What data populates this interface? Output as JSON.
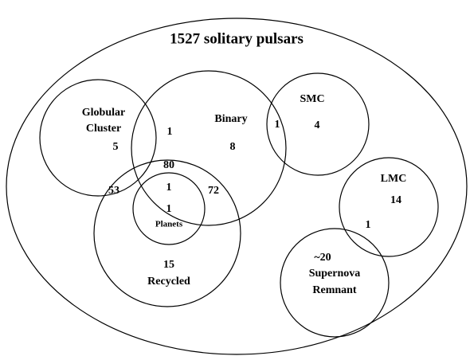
{
  "title": "1527 solitary pulsars",
  "sets": [
    {
      "label": [
        "Globular",
        "Cluster"
      ],
      "count": 5
    },
    {
      "label": [
        "Binary"
      ],
      "count": 8
    },
    {
      "label": [
        "SMC"
      ],
      "count": 4
    },
    {
      "label": [
        "Planets"
      ],
      "count": 1
    },
    {
      "label": [
        "Recycled"
      ],
      "count": 15
    },
    {
      "label": [
        "LMC"
      ],
      "count": 14
    },
    {
      "label": [
        "Supernova",
        "Remnant"
      ],
      "count": "~20"
    }
  ],
  "overlaps": [
    {
      "sets": [
        "Globular Cluster",
        "Binary"
      ],
      "count": 1
    },
    {
      "sets": [
        "Binary",
        "SMC"
      ],
      "count": 1
    },
    {
      "sets": [
        "Binary",
        "Recycled"
      ],
      "count": 80
    },
    {
      "sets": [
        "Globular Cluster",
        "Binary",
        "Recycled"
      ],
      "count": 1
    },
    {
      "sets": [
        "Globular Cluster",
        "Recycled"
      ],
      "count": 53
    },
    {
      "sets": [
        "Binary",
        "Recycled",
        "Planets"
      ],
      "count": 72
    },
    {
      "sets": [
        "LMC",
        "Supernova Remnant"
      ],
      "count": 1
    }
  ]
}
